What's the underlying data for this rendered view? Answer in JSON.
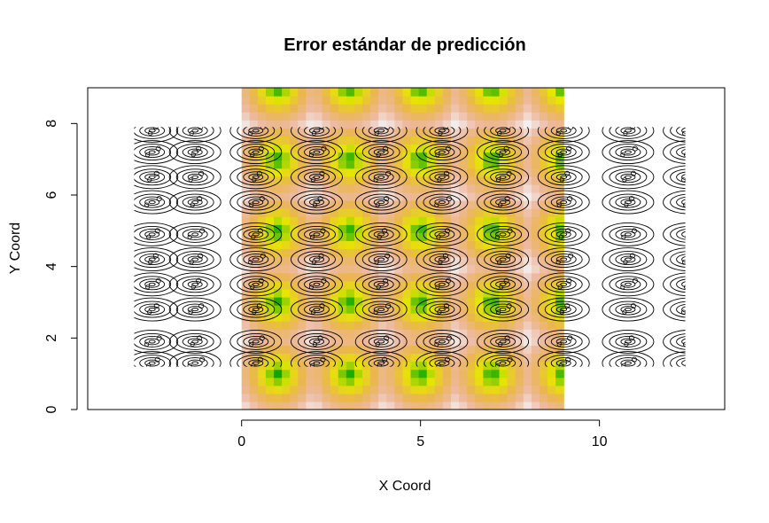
{
  "chart_data": {
    "type": "heatmap",
    "title": "Error estándar de predicción",
    "xlabel": "X Coord",
    "ylabel": "Y Coord",
    "xlim": [
      -4.3,
      13.5
    ],
    "ylim": [
      0,
      9
    ],
    "x_ticks": [
      0,
      5,
      10
    ],
    "y_ticks": [
      0,
      2,
      4,
      6,
      8
    ],
    "heatmap": {
      "x_range": [
        0,
        9
      ],
      "y_range": [
        0,
        9
      ],
      "cell_count": 40,
      "data_points": {
        "x": [
          1,
          3,
          5,
          7,
          9
        ],
        "y": [
          1,
          3,
          5,
          7,
          9
        ]
      },
      "palette": [
        "#00a600",
        "#e6e600",
        "#eab64e",
        "#eeb99f",
        "#f2f2f2"
      ],
      "value_scale": "low error near data points (green/yellow), high error midway (pink/white)"
    },
    "contours": {
      "x_centers": [
        -2.5,
        -1.3,
        0.4,
        2.1,
        3.9,
        5.6,
        7.3,
        9.0,
        10.8,
        12.5
      ],
      "y_centers": [
        7.8,
        7.2,
        6.5,
        5.8,
        4.9,
        4.2,
        3.5,
        2.8,
        1.9,
        1.3
      ],
      "x_extent": [
        -3.0,
        12.4
      ],
      "y_extent": [
        1.2,
        7.9
      ],
      "line_color": "#000000"
    },
    "grid": false,
    "legend": "none"
  }
}
